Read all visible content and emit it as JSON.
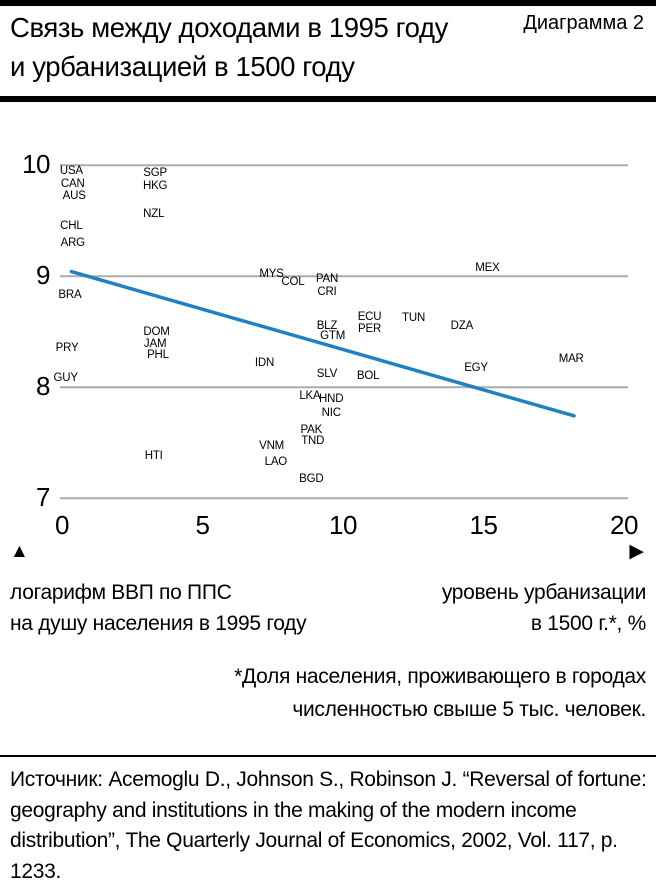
{
  "header": {
    "title_line1": "Связь между доходами в 1995 году",
    "title_line2": "и урбанизацией в 1500 году",
    "diagram_label": "Диаграмма 2"
  },
  "icons": {
    "y_axis_arrow": "▲",
    "x_axis_arrow": "▶"
  },
  "chart_data": {
    "type": "scatter",
    "title": "Связь между доходами в 1995 году и урбанизацией в 1500 году",
    "marker": "country-code-text",
    "xlim": [
      0,
      20
    ],
    "ylim": [
      7,
      10
    ],
    "x_ticks": [
      0,
      5,
      10,
      15,
      20
    ],
    "y_ticks": [
      10,
      9,
      8,
      7
    ],
    "grid": "horizontal",
    "grid_color": "#ababab",
    "trend_line": {
      "x1": 0.4,
      "y1": 9.04,
      "x2": 18.1,
      "y2": 7.74,
      "color": "#2180c0"
    },
    "y_caption_lines": [
      "логарифм ВВП по ППС",
      "на душу населения в 1995 году"
    ],
    "x_caption_lines": [
      "уровень урбанизации",
      "в 1500 г.*, %"
    ],
    "points": [
      {
        "label": "USA",
        "x": 0.4,
        "y": 9.95
      },
      {
        "label": "CAN",
        "x": 0.45,
        "y": 9.83
      },
      {
        "label": "AUS",
        "x": 0.5,
        "y": 9.72
      },
      {
        "label": "CHL",
        "x": 0.4,
        "y": 9.45
      },
      {
        "label": "ARG",
        "x": 0.45,
        "y": 9.3
      },
      {
        "label": "BRA",
        "x": 0.35,
        "y": 8.83
      },
      {
        "label": "PRY",
        "x": 0.25,
        "y": 8.35
      },
      {
        "label": "GUY",
        "x": 0.2,
        "y": 8.08
      },
      {
        "label": "SGP",
        "x": 3.35,
        "y": 9.93
      },
      {
        "label": "HKG",
        "x": 3.35,
        "y": 9.81
      },
      {
        "label": "NZL",
        "x": 3.3,
        "y": 9.56
      },
      {
        "label": "DOM",
        "x": 3.4,
        "y": 8.5
      },
      {
        "label": "JAM",
        "x": 3.35,
        "y": 8.39
      },
      {
        "label": "PHL",
        "x": 3.45,
        "y": 8.29
      },
      {
        "label": "HTI",
        "x": 3.3,
        "y": 7.38
      },
      {
        "label": "MYS",
        "x": 7.45,
        "y": 9.02
      },
      {
        "label": "COL",
        "x": 8.2,
        "y": 8.95
      },
      {
        "label": "IDN",
        "x": 7.2,
        "y": 8.22
      },
      {
        "label": "VNM",
        "x": 7.45,
        "y": 7.47
      },
      {
        "label": "LAO",
        "x": 7.6,
        "y": 7.32
      },
      {
        "label": "PAN",
        "x": 9.4,
        "y": 8.97
      },
      {
        "label": "CRI",
        "x": 9.4,
        "y": 8.86
      },
      {
        "label": "BLZ",
        "x": 9.4,
        "y": 8.55
      },
      {
        "label": "GTM",
        "x": 9.6,
        "y": 8.46
      },
      {
        "label": "SLV",
        "x": 9.4,
        "y": 8.12
      },
      {
        "label": "LKA",
        "x": 8.8,
        "y": 7.92
      },
      {
        "label": "HND",
        "x": 9.55,
        "y": 7.89
      },
      {
        "label": "NIC",
        "x": 9.55,
        "y": 7.77
      },
      {
        "label": "PAK",
        "x": 8.85,
        "y": 7.61
      },
      {
        "label": "TND",
        "x": 8.9,
        "y": 7.51
      },
      {
        "label": "BGD",
        "x": 8.85,
        "y": 7.17
      },
      {
        "label": "ECU",
        "x": 10.9,
        "y": 8.63
      },
      {
        "label": "PER",
        "x": 10.9,
        "y": 8.52
      },
      {
        "label": "BOL",
        "x": 10.85,
        "y": 8.1
      },
      {
        "label": "TUN",
        "x": 12.45,
        "y": 8.62
      },
      {
        "label": "DZA",
        "x": 14.15,
        "y": 8.55
      },
      {
        "label": "MEX",
        "x": 15.05,
        "y": 9.07
      },
      {
        "label": "EGY",
        "x": 14.65,
        "y": 8.17
      },
      {
        "label": "MAR",
        "x": 18.0,
        "y": 8.25
      }
    ]
  },
  "footnote": {
    "line1": "*Доля населения, проживающего в городах",
    "line2": "численностью свыше 5 тыс. человек."
  },
  "source": {
    "text": "Источник: Acemoglu D., Johnson S., Robinson J. “Reversal of fortune: geography and institutions in the making of the modern income distribution”, The Quarterly Journal of Economics, 2002, Vol. 117, p. 1233."
  }
}
